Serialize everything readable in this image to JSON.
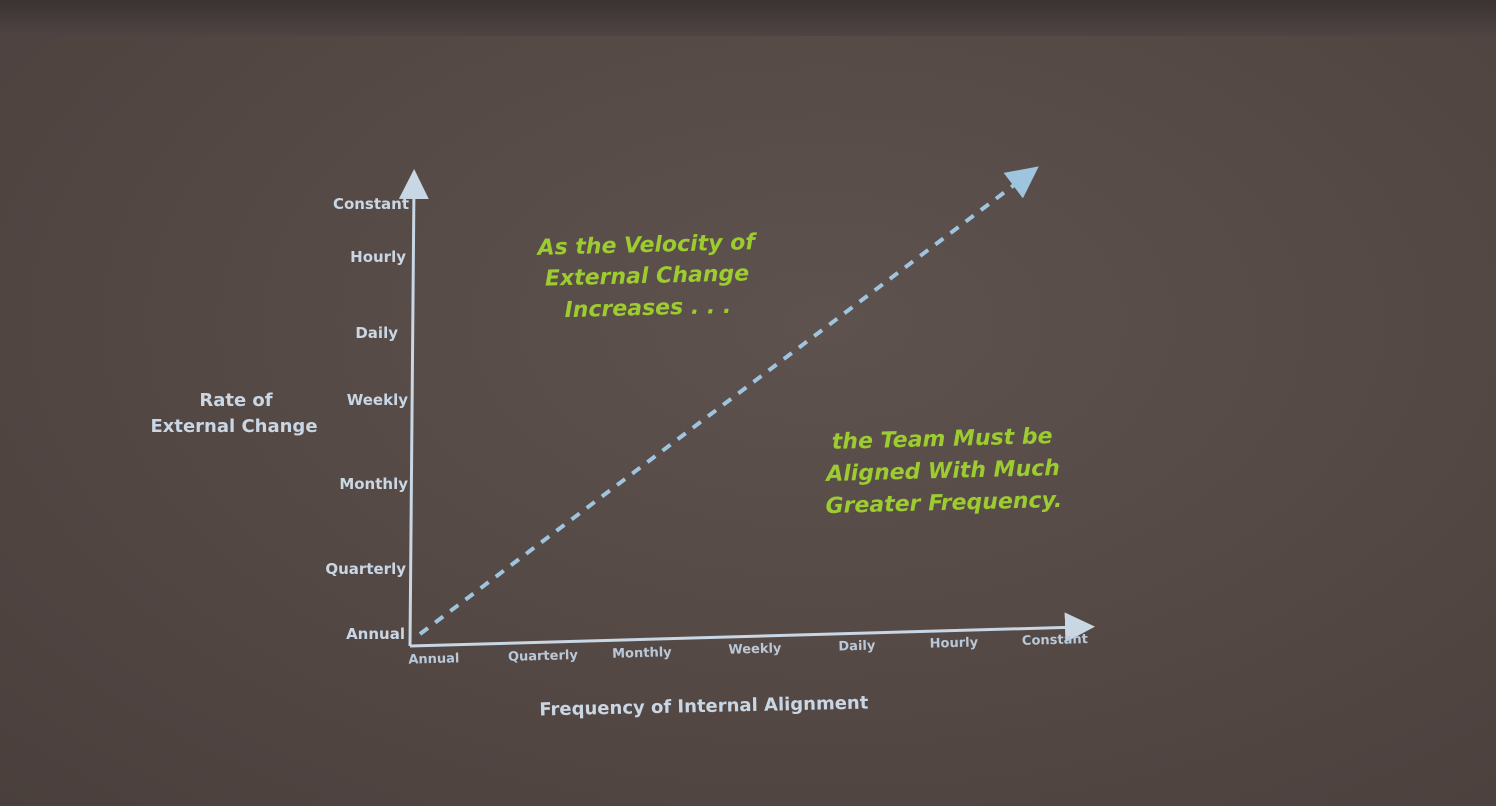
{
  "chart_data": {
    "type": "line",
    "x_tick_labels": [
      "Annual",
      "Quarterly",
      "Monthly",
      "Weekly",
      "Daily",
      "Hourly",
      "Constant"
    ],
    "y_tick_labels": [
      "Annual",
      "Quarterly",
      "Monthly",
      "Weekly",
      "Daily",
      "Hourly",
      "Constant"
    ],
    "xlabel": "Frequency of Internal Alignment",
    "ylabel_lines": [
      "Rate of",
      "External Change"
    ],
    "series": [
      {
        "x": [
          "Annual",
          "Constant"
        ],
        "y": [
          "Annual",
          "Constant"
        ],
        "style": "dashed-arrow"
      }
    ],
    "annotations": [
      {
        "lines": [
          "As the Velocity of",
          "External Change",
          "Increases . . ."
        ]
      },
      {
        "lines": [
          "the Team Must be",
          "Aligned With Much",
          "Greater Frequency."
        ]
      }
    ],
    "colors": {
      "axis": "#c9d6e4",
      "dashed_line": "#9fc4de",
      "annotation": "#9ccc2f",
      "background": "#564a46"
    },
    "grid": false
  }
}
